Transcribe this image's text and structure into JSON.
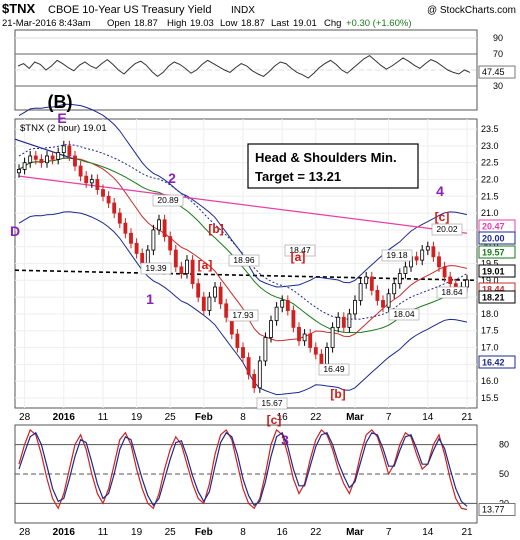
{
  "header": {
    "symbol": "$TNX",
    "name": "CBOE 10-Year US Treasury Yield",
    "exchange": "INDX",
    "credit": "@ StockCharts.com",
    "date_time": "21-Mar-2016 8:43am",
    "open_label": "Open",
    "open": "18.87",
    "high_label": "High",
    "high": "19.03",
    "low_label": "Low",
    "low": "18.87",
    "last_label": "Last",
    "last": "19.01",
    "chg_label": "Chg",
    "chg": "+0.30 (+1.60%)"
  },
  "chart_data": [
    {
      "panel": "rsi_top",
      "type": "line",
      "ylim": [
        0,
        100
      ],
      "y_ticks": [
        30,
        50,
        70,
        90
      ],
      "last_value_label": "47.45",
      "last_value": 47.45,
      "values": [
        55,
        58,
        52,
        60,
        57,
        50,
        55,
        62,
        58,
        53,
        49,
        56,
        60,
        55,
        52,
        58,
        63,
        57,
        50,
        45,
        52,
        58,
        61,
        56,
        48,
        42,
        47,
        55,
        60,
        57,
        52,
        46,
        50,
        57,
        62,
        58,
        54,
        50,
        47,
        53,
        58,
        55,
        49,
        45,
        42,
        48,
        55,
        60,
        58,
        52,
        47,
        44,
        40,
        46,
        53,
        58,
        62,
        57,
        50,
        46,
        52,
        58,
        64,
        68,
        62,
        56,
        51,
        55,
        60,
        65,
        61,
        56,
        52,
        58,
        63,
        60,
        55,
        50,
        47,
        45,
        50,
        47
      ],
      "shaded_below": 30
    },
    {
      "panel": "price",
      "type": "candlestick",
      "title": "$TNX (2 hour) 19.01",
      "ylim": [
        15.2,
        23.8
      ],
      "y_ticks": [
        15.5,
        16.0,
        16.5,
        17.0,
        17.5,
        18.0,
        18.5,
        19.0,
        19.5,
        20.0,
        20.5,
        21.0,
        21.5,
        22.0,
        22.5,
        23.0,
        23.5
      ],
      "x_tick_labels": [
        "28",
        "2016",
        "11",
        "19",
        "25",
        "Feb",
        "8",
        "16",
        "22",
        "Mar",
        "7",
        "14",
        "21"
      ],
      "closes": [
        22.3,
        22.5,
        22.7,
        22.6,
        22.5,
        22.7,
        22.6,
        22.8,
        23.0,
        22.7,
        22.4,
        22.1,
        21.9,
        22.0,
        21.7,
        21.5,
        21.3,
        21.0,
        20.7,
        20.4,
        20.1,
        19.8,
        19.5,
        19.9,
        20.5,
        20.8,
        20.3,
        19.9,
        19.4,
        19.2,
        19.6,
        18.9,
        18.5,
        18.1,
        18.5,
        18.8,
        18.3,
        17.9,
        17.4,
        17.0,
        16.7,
        16.2,
        15.8,
        16.6,
        17.3,
        17.8,
        18.2,
        18.4,
        18.1,
        17.6,
        17.2,
        17.4,
        17.0,
        16.8,
        16.5,
        17.0,
        17.6,
        17.9,
        17.6,
        18.0,
        18.4,
        18.9,
        19.1,
        18.7,
        18.4,
        18.2,
        18.6,
        18.9,
        19.2,
        19.4,
        19.7,
        19.6,
        19.9,
        20.0,
        19.7,
        19.4,
        19.1,
        18.9,
        18.8,
        18.8,
        19.01
      ],
      "reference_levels": [
        {
          "label": "20.47",
          "value": 20.47,
          "color": "#e83ea5"
        },
        {
          "label": "20.00",
          "value": 20.0,
          "color": "#1b2a8c"
        },
        {
          "label": "19.57",
          "value": 19.57,
          "color": "#1a7a1a"
        },
        {
          "label": "19.01",
          "value": 19.01,
          "color": "#000000"
        },
        {
          "label": "18.44",
          "value": 18.44,
          "color": "#c62b2b"
        },
        {
          "label": "18.21",
          "value": 18.21,
          "color": "#000000"
        },
        {
          "label": "16.42",
          "value": 16.42,
          "color": "#1b2a8c"
        }
      ],
      "price_labels": [
        {
          "text": "20.89",
          "value": 20.89
        },
        {
          "text": "19.39",
          "value": 19.39
        },
        {
          "text": "18.96",
          "value": 18.96
        },
        {
          "text": "17.93",
          "value": 17.93
        },
        {
          "text": "18.47",
          "value": 18.47
        },
        {
          "text": "15.67",
          "value": 15.67
        },
        {
          "text": "16.49",
          "value": 16.49
        },
        {
          "text": "19.18",
          "value": 19.18
        },
        {
          "text": "18.04",
          "value": 18.04
        },
        {
          "text": "20.02",
          "value": 20.02
        },
        {
          "text": "18.64",
          "value": 18.64
        }
      ],
      "wave_labels": [
        {
          "text": "(B)",
          "color": "#000000"
        },
        {
          "text": "E",
          "color": "#8b1fb8"
        },
        {
          "text": "D",
          "color": "#8b1fb8"
        },
        {
          "text": "2",
          "color": "#8b1fb8"
        },
        {
          "text": "1",
          "color": "#8b1fb8"
        },
        {
          "text": "[b]",
          "color": "#d01818"
        },
        {
          "text": "[a]",
          "color": "#d01818"
        },
        {
          "text": "[a]",
          "color": "#d01818"
        },
        {
          "text": "[b]",
          "color": "#d01818"
        },
        {
          "text": "[c]",
          "color": "#d01818"
        },
        {
          "text": "3",
          "color": "#8b1fb8"
        },
        {
          "text": "4",
          "color": "#8b1fb8"
        },
        {
          "text": "[c]",
          "color": "#d01818"
        }
      ],
      "annotation": {
        "line1": "Head & Shoulders Min.",
        "line2": "Target = 13.21"
      }
    },
    {
      "panel": "stoch_bottom",
      "type": "line",
      "ylim": [
        0,
        100
      ],
      "y_ticks": [
        20,
        50,
        80
      ],
      "last_value_label": "13.77",
      "last_value": 13.77,
      "series": [
        {
          "values": [
            60,
            80,
            95,
            90,
            70,
            45,
            25,
            15,
            30,
            55,
            80,
            90,
            75,
            50,
            30,
            20,
            35,
            60,
            85,
            92,
            80,
            55,
            35,
            20,
            15,
            30,
            55,
            75,
            88,
            80,
            60,
            40,
            25,
            20,
            40,
            70,
            90,
            95,
            85,
            60,
            35,
            20,
            15,
            25,
            50,
            80,
            95,
            90,
            70,
            45,
            30,
            40,
            65,
            85,
            95,
            90,
            75,
            55,
            40,
            30,
            45,
            70,
            90,
            95,
            88,
            70,
            50,
            60,
            80,
            92,
            88,
            70,
            55,
            60,
            80,
            90,
            70,
            45,
            25,
            15,
            13.77
          ],
          "color": "#d02020"
        },
        {
          "values": [
            55,
            72,
            88,
            92,
            80,
            58,
            35,
            22,
            25,
            45,
            68,
            85,
            82,
            62,
            40,
            25,
            30,
            50,
            75,
            88,
            85,
            65,
            45,
            28,
            18,
            25,
            45,
            65,
            82,
            84,
            68,
            48,
            32,
            22,
            32,
            58,
            82,
            92,
            88,
            70,
            45,
            28,
            18,
            22,
            42,
            68,
            88,
            92,
            78,
            55,
            38,
            38,
            58,
            78,
            90,
            92,
            80,
            62,
            48,
            36,
            42,
            62,
            82,
            92,
            90,
            76,
            58,
            58,
            74,
            88,
            90,
            76,
            60,
            60,
            74,
            86,
            76,
            55,
            35,
            22,
            17
          ],
          "color": "#1b2a8c"
        }
      ]
    }
  ]
}
